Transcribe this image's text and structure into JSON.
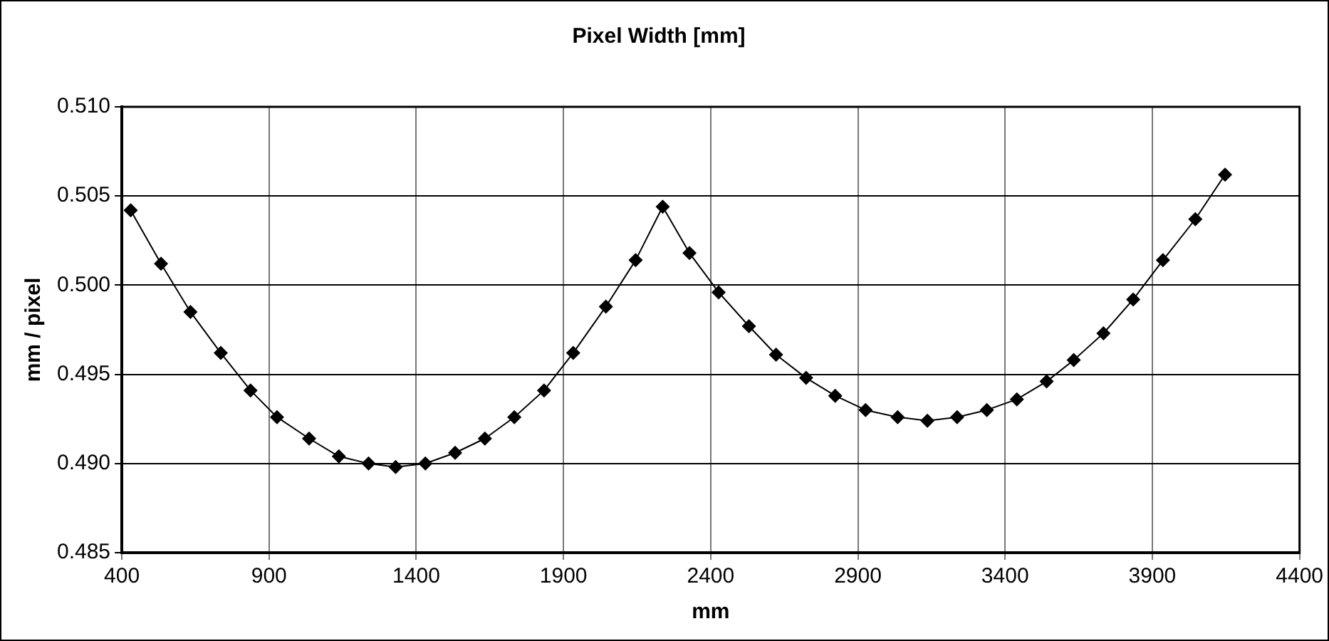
{
  "chart_data": {
    "type": "line",
    "title": "Pixel Width [mm]",
    "xlabel": "mm",
    "ylabel": "mm / pixel",
    "x": [
      430,
      533,
      633,
      736,
      837,
      927,
      1036,
      1137,
      1238,
      1330,
      1431,
      1532,
      1633,
      1733,
      1834,
      1933,
      2044,
      2145,
      2237,
      2328,
      2427,
      2530,
      2622,
      2724,
      2823,
      2926,
      3035,
      3136,
      3237,
      3338,
      3440,
      3541,
      3633,
      3734,
      3835,
      3936,
      4046,
      4147
    ],
    "series": [
      {
        "color": "#000000",
        "values": [
          0.5042,
          0.5012,
          0.4985,
          0.4962,
          0.4941,
          0.4926,
          0.4914,
          0.4904,
          0.49,
          0.4898,
          0.49,
          0.4906,
          0.4914,
          0.4926,
          0.4941,
          0.4962,
          0.4988,
          0.5014,
          0.5044,
          0.5018,
          0.4996,
          0.4977,
          0.4961,
          0.4948,
          0.4938,
          0.493,
          0.4926,
          0.4924,
          0.4926,
          0.493,
          0.4936,
          0.4946,
          0.4958,
          0.4973,
          0.4992,
          0.5014,
          0.5037,
          0.5062
        ]
      }
    ],
    "xlim": [
      400,
      4400
    ],
    "xticks": [
      400,
      900,
      1400,
      1900,
      2400,
      2900,
      3400,
      3900,
      4400
    ],
    "ylim": [
      0.485,
      0.51
    ],
    "yticks": [
      0.485,
      {
        "value": 0.49,
        "label": "0.490"
      },
      0.495,
      {
        "value": 0.5,
        "label": "0.500"
      },
      0.505,
      {
        "value": 0.51,
        "label": "0.510"
      }
    ],
    "grid": true,
    "legend": false,
    "marker": "diamond",
    "line_style": "solid"
  }
}
